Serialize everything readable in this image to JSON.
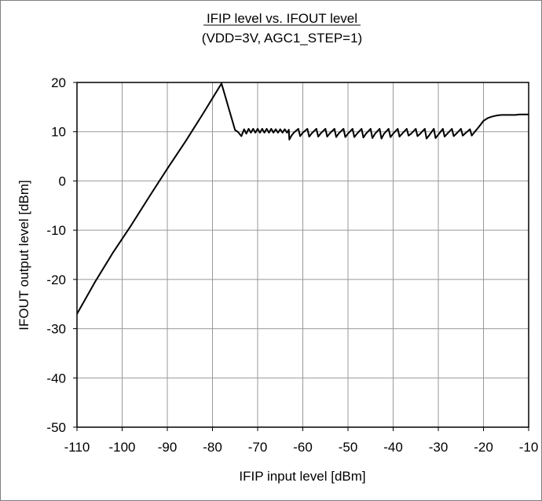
{
  "chart_data": {
    "type": "line",
    "title": "IFIP level vs. IFOUT level",
    "subtitle": "(VDD=3V, AGC1_STEP=1)",
    "xlabel": "IFIP input level [dBm]",
    "ylabel": "IFOUT output level [dBm]",
    "xlim": [
      -110,
      -10
    ],
    "ylim": [
      -50,
      20
    ],
    "xticks": [
      -110,
      -100,
      -90,
      -80,
      -70,
      -60,
      -50,
      -40,
      -30,
      -20,
      -10
    ],
    "yticks": [
      -50,
      -40,
      -30,
      -20,
      -10,
      0,
      10,
      20
    ],
    "grid": true,
    "legend": "none",
    "line_color": "#000000",
    "series": [
      {
        "x": [
          -110,
          -106,
          -102,
          -98,
          -94,
          -90,
          -86,
          -82,
          -78,
          -75,
          -74.4,
          -73.6,
          -73,
          -72.5,
          -72,
          -71.5,
          -71,
          -70.5,
          -70,
          -69.5,
          -69,
          -68.5,
          -68,
          -67.5,
          -67,
          -66.5,
          -66,
          -65.5,
          -65,
          -64.5,
          -64,
          -63.5,
          -63.1,
          -63,
          -62.5,
          -62,
          -61,
          -60.6,
          -60,
          -59,
          -58.6,
          -58,
          -57,
          -56.6,
          -56,
          -55,
          -54.6,
          -54,
          -53,
          -52.6,
          -52,
          -51,
          -50.6,
          -50,
          -49,
          -48.6,
          -48,
          -47,
          -46.6,
          -46,
          -45,
          -44.6,
          -44,
          -43,
          -42.6,
          -42,
          -41,
          -40.6,
          -40,
          -39,
          -38.6,
          -38,
          -37,
          -36.6,
          -36,
          -35,
          -34.6,
          -34,
          -33,
          -32.6,
          -32,
          -31,
          -30.6,
          -30,
          -29,
          -28.6,
          -28,
          -27,
          -26.6,
          -26,
          -25,
          -24.6,
          -24,
          -23,
          -22.6,
          -22,
          -21,
          -20,
          -19,
          -18,
          -17,
          -16,
          -15,
          -14,
          -13,
          -12,
          -11,
          -10
        ],
        "y": [
          -27,
          -20.5,
          -14.5,
          -9,
          -3.2,
          2.5,
          8,
          13.8,
          19.8,
          10.3,
          10,
          9.1,
          10.5,
          9.6,
          10.6,
          9.8,
          10.6,
          9.8,
          10.6,
          9.8,
          10.6,
          9.8,
          10.6,
          9.8,
          10.6,
          9.8,
          10.5,
          9.8,
          10.5,
          9.8,
          10.5,
          9.8,
          10.4,
          8.4,
          9.2,
          9.8,
          10.6,
          9.1,
          9.8,
          10.6,
          9,
          9.7,
          10.6,
          9,
          9.7,
          10.6,
          9,
          9.7,
          10.6,
          8.9,
          9.7,
          10.6,
          8.9,
          9.6,
          10.6,
          8.9,
          9.6,
          10.6,
          8.8,
          9.6,
          10.6,
          8.7,
          9.6,
          10.6,
          8.6,
          9.6,
          10.6,
          8.9,
          9.6,
          10.6,
          9,
          9.6,
          10.6,
          9.2,
          9.6,
          10.6,
          9.1,
          9.6,
          10.6,
          8.6,
          9.3,
          10.6,
          8.7,
          9.4,
          10.6,
          9,
          9.6,
          10.6,
          9.1,
          9.6,
          10.6,
          9.2,
          9.7,
          10.5,
          9.2,
          9.9,
          11,
          12.2,
          12.8,
          13.1,
          13.3,
          13.4,
          13.4,
          13.4,
          13.4,
          13.5,
          13.5,
          13.5
        ]
      }
    ]
  }
}
